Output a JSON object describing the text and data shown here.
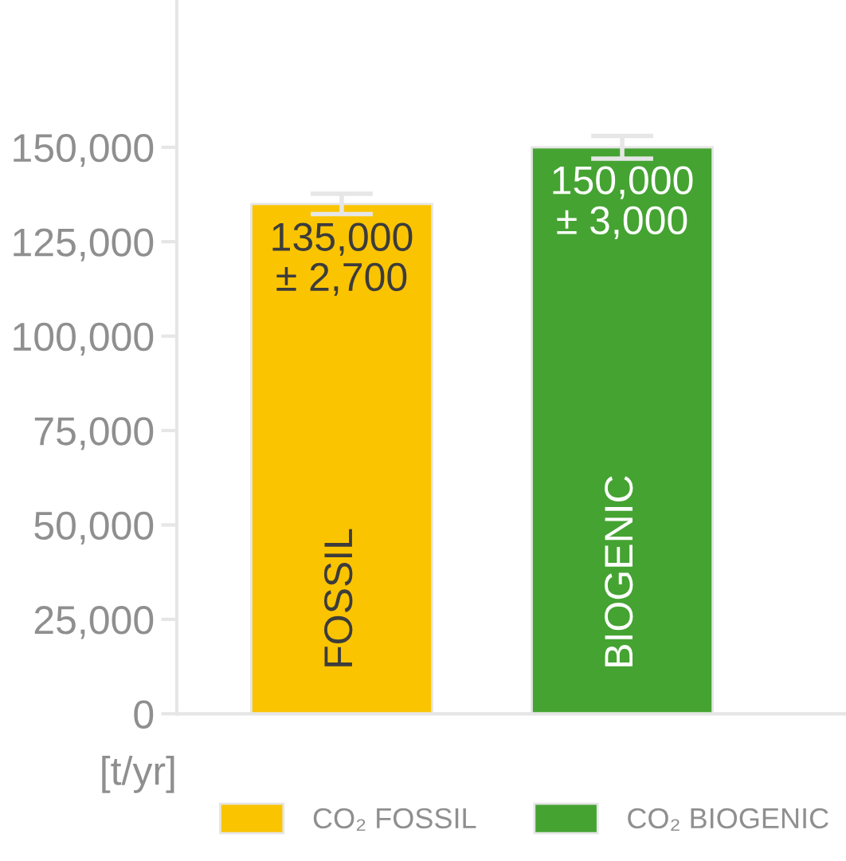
{
  "chart_data": {
    "type": "bar",
    "ylabel": "[t/yr]",
    "categories": [
      "FOSSIL",
      "BIOGENIC"
    ],
    "series": [
      {
        "name": "CO₂ FOSSIL",
        "color": "#fbc400",
        "values": [
          135000,
          null
        ],
        "errors": [
          2700,
          null
        ],
        "value_labels": [
          "135,000\n± 2,700",
          null
        ]
      },
      {
        "name": "CO₂ BIOGENIC",
        "color": "#45a332",
        "values": [
          null,
          150000
        ],
        "errors": [
          null,
          3000
        ],
        "value_labels": [
          null,
          "150,000\n± 3,000"
        ]
      }
    ],
    "ylim": [
      0,
      189000
    ],
    "yticks": [
      0,
      {
        "value": 25000,
        "label": "25,000"
      },
      {
        "value": 50000,
        "label": "50,000"
      },
      {
        "value": 75000,
        "label": "75,000"
      },
      {
        "value": 100000,
        "label": "100,000"
      },
      {
        "value": 125000,
        "label": "125,000"
      },
      {
        "value": 150000,
        "label": "150,000"
      }
    ],
    "grid": false,
    "legend": "bottom"
  }
}
